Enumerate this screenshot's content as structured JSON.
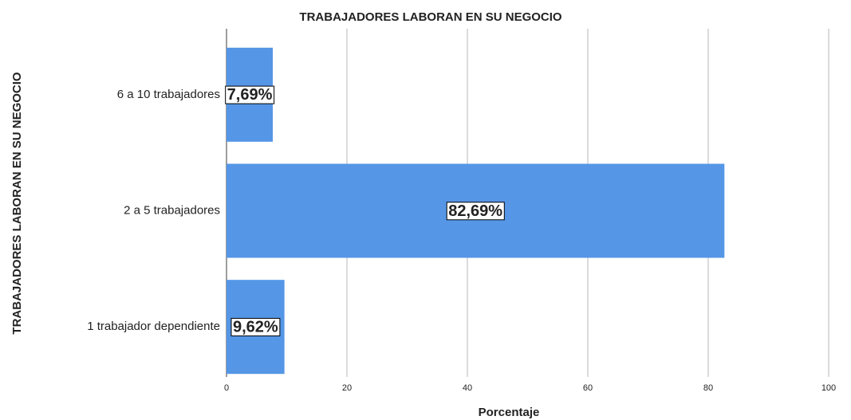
{
  "chart_data": {
    "type": "hbar",
    "title": "TRABAJADORES LABORAN EN SU NEGOCIO",
    "xlabel": "Porcentaje",
    "ylabel": "TRABAJADORES LABORAN EN SU NEGOCIO",
    "categories": [
      "6 a 10 trabajadores",
      "2 a 5 trabajadores",
      "1 trabajador dependiente"
    ],
    "values": [
      7.69,
      82.69,
      9.62
    ],
    "value_labels": [
      "7,69%",
      "82,69%",
      "9,62%"
    ],
    "color": "#5596e6",
    "xlim": [
      0,
      100
    ],
    "xticks": [
      0,
      20,
      40,
      60,
      80,
      100
    ],
    "grid": true
  }
}
